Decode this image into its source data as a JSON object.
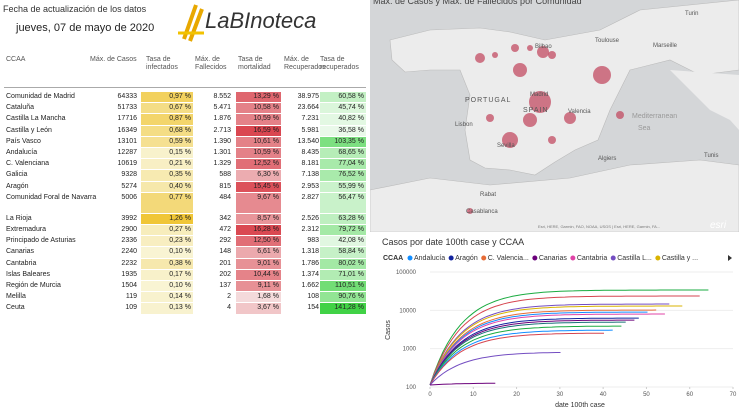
{
  "header": {
    "update_label": "Fecha de actualización de los datos",
    "date": "jueves, 07 de mayo de 2020",
    "logo": "LaBInoteca"
  },
  "table": {
    "columns": [
      "CCAA",
      "Máx. de Casos",
      "Tasa de infectados",
      "Máx. de Fallecidos",
      "Tasa de mortalidad",
      "Máx. de Recuperados",
      "Tasa de recuperados"
    ],
    "rows": [
      [
        "Comunidad de Madrid",
        "64333",
        "0,97 %",
        "8.552",
        "13,29 %",
        "38.975",
        "60,58 %"
      ],
      [
        "Cataluña",
        "51733",
        "0,67 %",
        "5.471",
        "10,58 %",
        "23.664",
        "45,74 %"
      ],
      [
        "Castilla La Mancha",
        "17716",
        "0,87 %",
        "1.876",
        "10,59 %",
        "7.231",
        "40,82 %"
      ],
      [
        "Castilla y León",
        "16349",
        "0,68 %",
        "2.713",
        "16,59 %",
        "5.981",
        "36,58 %"
      ],
      [
        "País Vasco",
        "13101",
        "0,59 %",
        "1.390",
        "10,61 %",
        "13.540",
        "103,35 %"
      ],
      [
        "Andalucía",
        "12287",
        "0,15 %",
        "1.301",
        "10,59 %",
        "8.435",
        "68,65 %"
      ],
      [
        "C. Valenciana",
        "10619",
        "0,21 %",
        "1.329",
        "12,52 %",
        "8.181",
        "77,04 %"
      ],
      [
        "Galicia",
        "9328",
        "0,35 %",
        "588",
        "6,30 %",
        "7.138",
        "76,52 %"
      ],
      [
        "Aragón",
        "5274",
        "0,40 %",
        "815",
        "15,45 %",
        "2.953",
        "55,99 %"
      ],
      [
        "Comunidad Foral de Navarra",
        "5006",
        "0,77 %",
        "484",
        "9,67 %",
        "2.827",
        "56,47 %"
      ],
      [
        "La Rioja",
        "3992",
        "1,26 %",
        "342",
        "8,57 %",
        "2.526",
        "63,28 %"
      ],
      [
        "Extremadura",
        "2900",
        "0,27 %",
        "472",
        "16,28 %",
        "2.312",
        "79,72 %"
      ],
      [
        "Principado de Asturias",
        "2336",
        "0,23 %",
        "292",
        "12,50 %",
        "983",
        "42,08 %"
      ],
      [
        "Canarias",
        "2240",
        "0,10 %",
        "148",
        "6,61 %",
        "1.318",
        "58,84 %"
      ],
      [
        "Cantabria",
        "2232",
        "0,38 %",
        "201",
        "9,01 %",
        "1.786",
        "80,02 %"
      ],
      [
        "Islas Baleares",
        "1935",
        "0,17 %",
        "202",
        "10,44 %",
        "1.374",
        "71,01 %"
      ],
      [
        "Región de Murcia",
        "1504",
        "0,10 %",
        "137",
        "9,11 %",
        "1.662",
        "110,51 %"
      ],
      [
        "Melilla",
        "119",
        "0,14 %",
        "2",
        "1,68 %",
        "108",
        "90,76 %"
      ],
      [
        "Ceuta",
        "109",
        "0,13 %",
        "4",
        "3,67 %",
        "154",
        "141,28 %"
      ]
    ]
  },
  "map": {
    "title": "Máx. de Casos y Máx. de Fallecidos por Comunidad",
    "labels": [
      "Turin",
      "Toulouse",
      "Marseille",
      "Bilbao",
      "PORTUGAL",
      "SPAIN",
      "Madrid",
      "Valencia",
      "Lisbon",
      "Mediterranean",
      "Sea",
      "Sevilla",
      "Algiers",
      "Tunis",
      "Rabat",
      "Casablanca"
    ],
    "attribution": "Esri, HERE, Garmin, FAO, NOAA, USGS | Esri, HERE, Garmin, FA...",
    "brand": "esri"
  },
  "line_chart": {
    "title": "Casos por date 100th case y CCAA",
    "legend_title": "CCAA",
    "legend": [
      {
        "name": "Andalucía",
        "color": "#118dff"
      },
      {
        "name": "Aragón",
        "color": "#12239e"
      },
      {
        "name": "C. Valencia...",
        "color": "#e66c37"
      },
      {
        "name": "Canarias",
        "color": "#6b007b"
      },
      {
        "name": "Cantabria",
        "color": "#e044a7"
      },
      {
        "name": "Castilla L...",
        "color": "#744ec2"
      },
      {
        "name": "Castilla y ...",
        "color": "#d9b300"
      }
    ],
    "y_label": "Casos",
    "x_label": "date 100th case",
    "ylog": true,
    "yticks": [
      100,
      1000,
      10000,
      100000
    ],
    "xticks": [
      0,
      10,
      20,
      30,
      40,
      50,
      60,
      70
    ]
  }
}
